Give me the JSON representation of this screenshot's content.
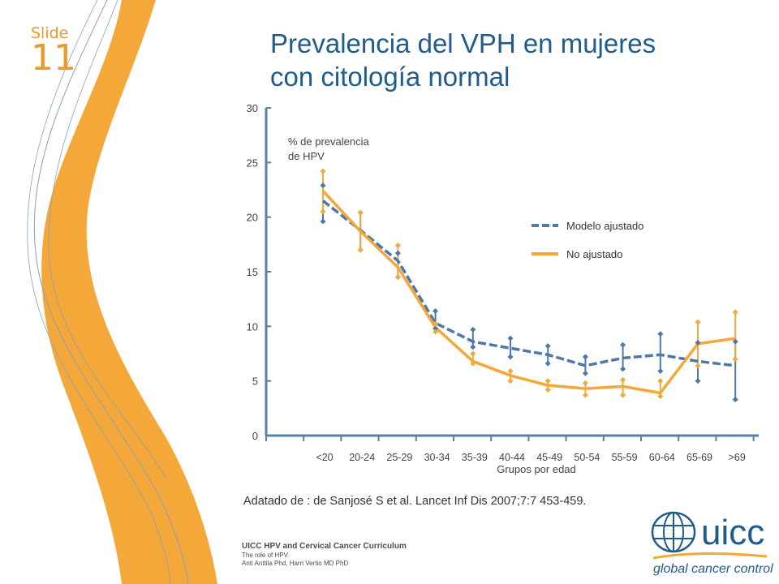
{
  "slide": {
    "label": "Slide",
    "number": "11"
  },
  "title_line1": "Prevalencia del VPH en mujeres",
  "title_line2": "con citología normal",
  "citation": "Adatado de : de Sanjosé S et al. Lancet Inf Dis 2007;7:7 453-459.",
  "footer": {
    "line1": "UICC  HPV and Cervical Cancer Curriculum",
    "line2": "The role of HPV",
    "line3": "Anti Anttila Phd, Harri Vertio MD PhD"
  },
  "logo": {
    "name": "uicc",
    "tagline": "global cancer control"
  },
  "colors": {
    "orange": "#f5a83a",
    "blue": "#4d79a8",
    "title": "#1f5c8c",
    "accent": "#e89a2a"
  },
  "chart_data": {
    "type": "line",
    "ylabel": "% de prevalencia de HPV",
    "ylabel_lines": [
      "% de prevalencia",
      "de HPV"
    ],
    "xlabel": "Grupos por edad",
    "ylim": [
      0,
      30
    ],
    "yticks": [
      0,
      5,
      10,
      15,
      20,
      25,
      30
    ],
    "categories": [
      "<20",
      "20-24",
      "25-29",
      "30-34",
      "35-39",
      "40-44",
      "45-49",
      "50-54",
      "55-59",
      "60-64",
      "65-69",
      ">69"
    ],
    "series": [
      {
        "name": "Modelo ajustado",
        "style": "dashed",
        "color": "#4d79a8",
        "values": [
          21.5,
          18.8,
          16.0,
          10.3,
          8.6,
          8.0,
          7.4,
          6.4,
          7.1,
          7.4,
          6.8,
          6.4
        ],
        "ci_low": [
          19.6,
          17.0,
          14.5,
          9.8,
          8.1,
          7.2,
          6.6,
          5.7,
          6.1,
          5.9,
          5.0,
          3.3
        ],
        "ci_high": [
          22.9,
          20.4,
          16.7,
          11.4,
          9.7,
          8.9,
          8.2,
          7.2,
          8.3,
          9.3,
          8.5,
          8.6
        ]
      },
      {
        "name": "No ajustado",
        "style": "solid",
        "color": "#f5a83a",
        "values": [
          22.4,
          18.7,
          15.4,
          9.9,
          6.8,
          5.5,
          4.6,
          4.3,
          4.5,
          3.9,
          8.4,
          8.9
        ],
        "ci_low": [
          20.5,
          17.0,
          14.5,
          9.5,
          6.6,
          5.0,
          4.2,
          3.7,
          3.7,
          3.6,
          6.4,
          7.0
        ],
        "ci_high": [
          24.2,
          20.4,
          17.4,
          10.2,
          7.5,
          5.9,
          5.0,
          4.8,
          5.1,
          5.0,
          10.4,
          11.3
        ]
      }
    ]
  }
}
